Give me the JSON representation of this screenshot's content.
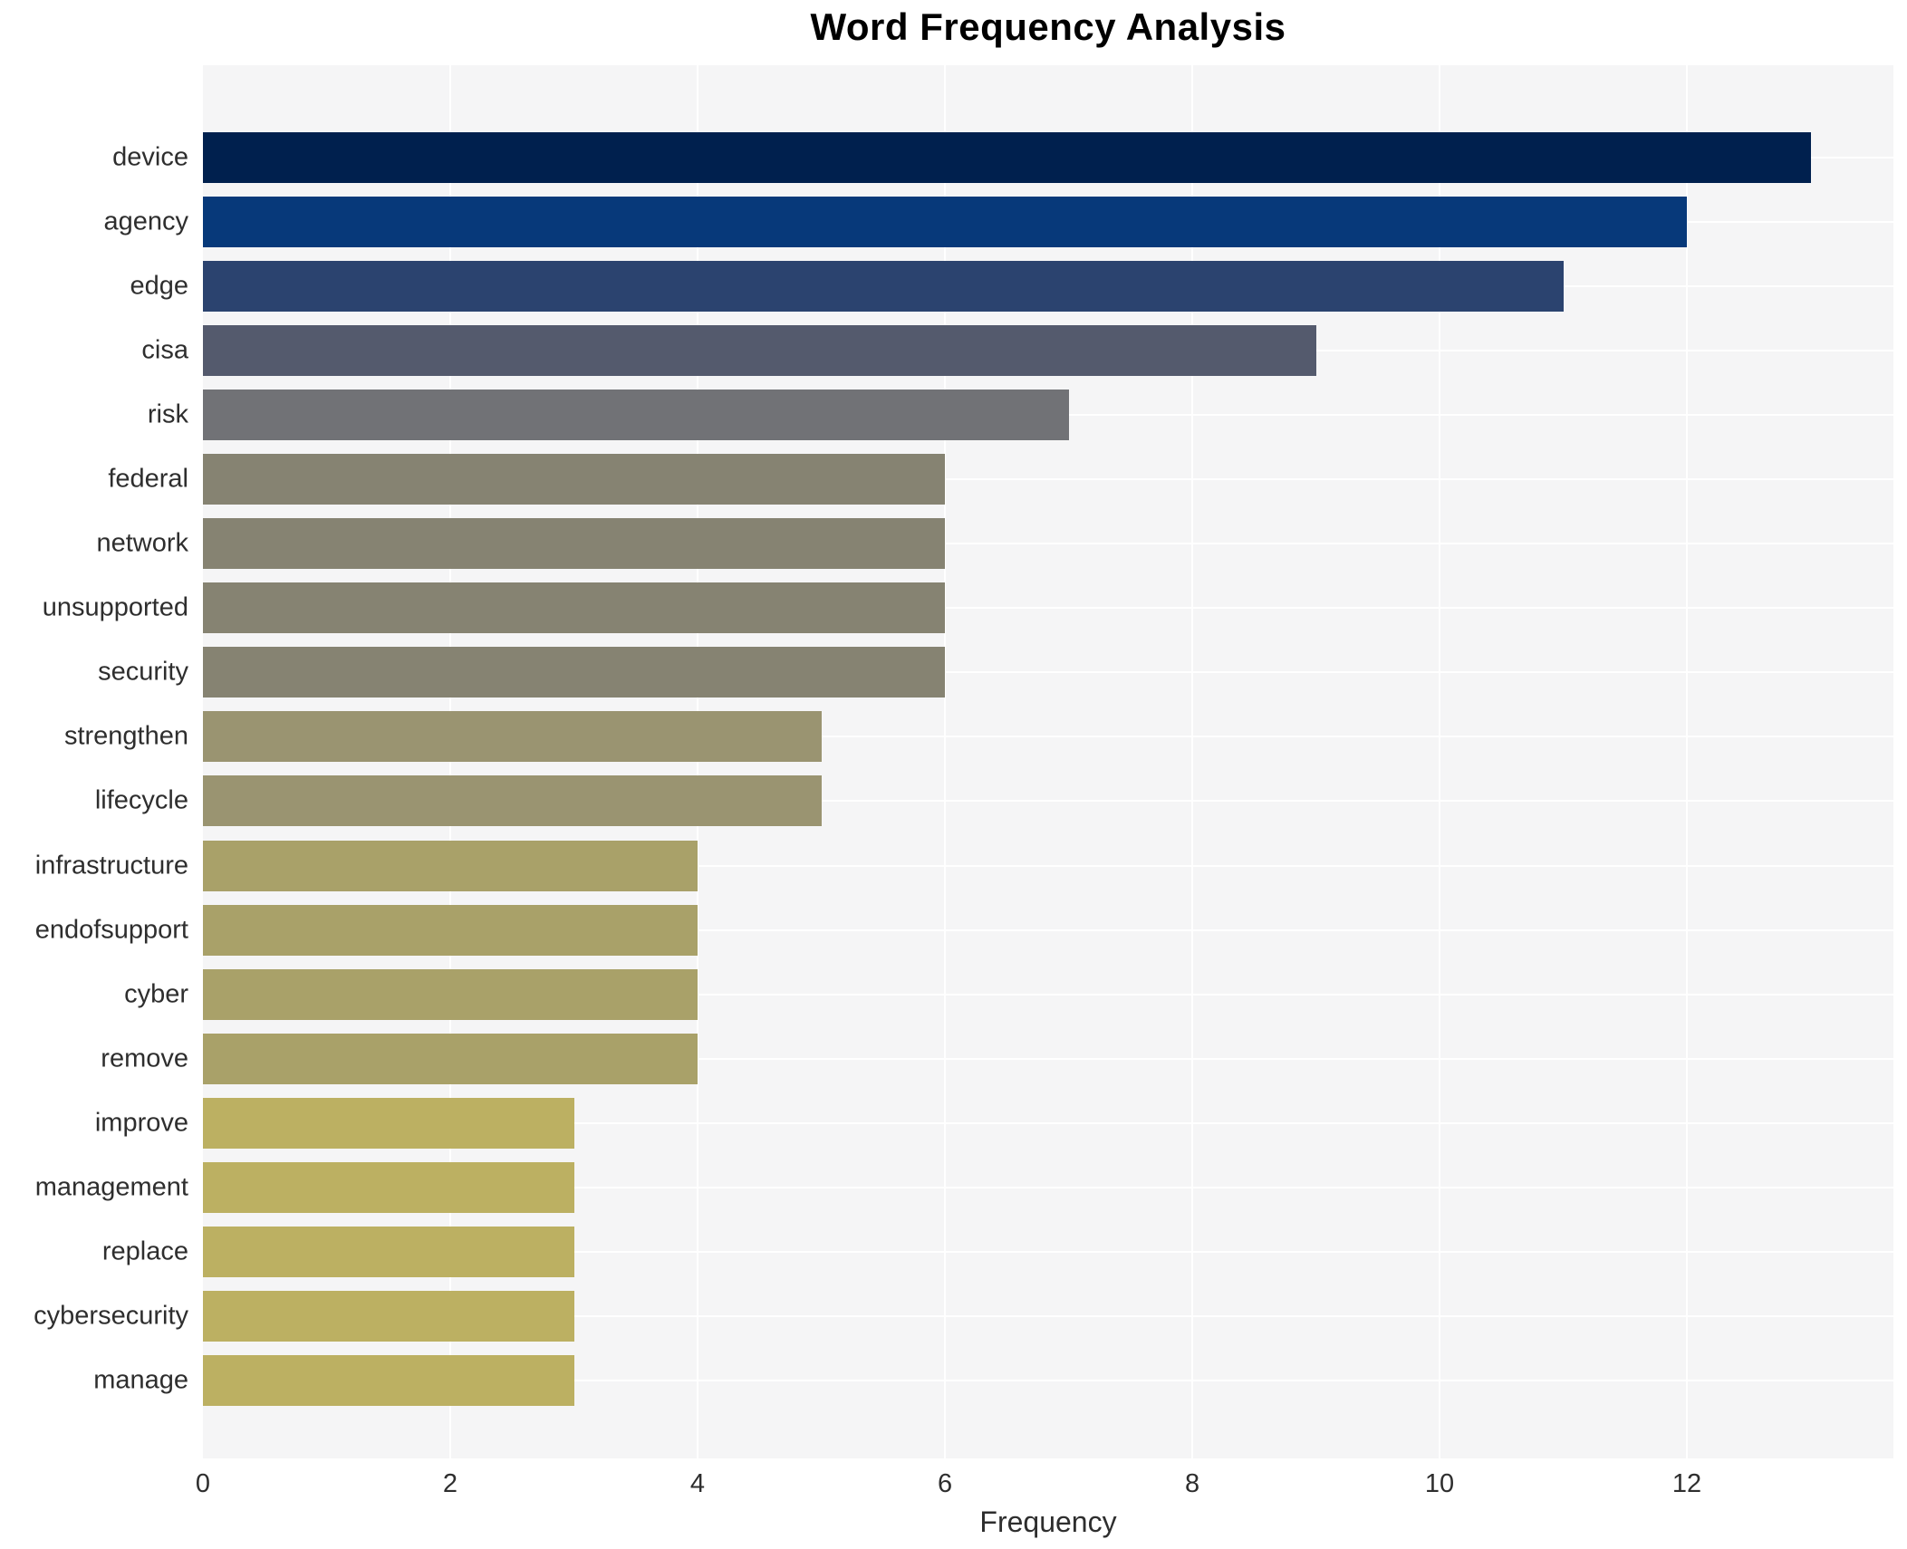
{
  "title": "Word Frequency Analysis",
  "chart_data": {
    "type": "bar",
    "orientation": "horizontal",
    "title": "Word Frequency Analysis",
    "xlabel": "Frequency",
    "categories": [
      "device",
      "agency",
      "edge",
      "cisa",
      "risk",
      "federal",
      "network",
      "unsupported",
      "security",
      "strengthen",
      "lifecycle",
      "infrastructure",
      "endofsupport",
      "cyber",
      "remove",
      "improve",
      "management",
      "replace",
      "cybersecurity",
      "manage"
    ],
    "values": [
      13,
      12,
      11,
      9,
      7,
      6,
      6,
      6,
      6,
      5,
      5,
      4,
      4,
      4,
      4,
      3,
      3,
      3,
      3,
      3
    ],
    "bar_colors": [
      "#00204e",
      "#07397a",
      "#2b436f",
      "#545a6d",
      "#717276",
      "#868372",
      "#868372",
      "#868372",
      "#868372",
      "#9a9471",
      "#9a9471",
      "#a9a169",
      "#a9a169",
      "#a9a169",
      "#a9a169",
      "#bcb062",
      "#bcb062",
      "#bcb062",
      "#bcb062",
      "#bcb062"
    ],
    "xlim": [
      0,
      13.67
    ],
    "xticks": [
      0,
      2,
      4,
      6,
      8,
      10,
      12
    ],
    "grid": true,
    "legend_position": "none"
  },
  "style": {
    "plot_bg": "#f5f5f6",
    "page_bg": "#ffffff",
    "grid_color": "#ffffff",
    "text_color": "#2e2e2e",
    "title_color": "#000000"
  }
}
